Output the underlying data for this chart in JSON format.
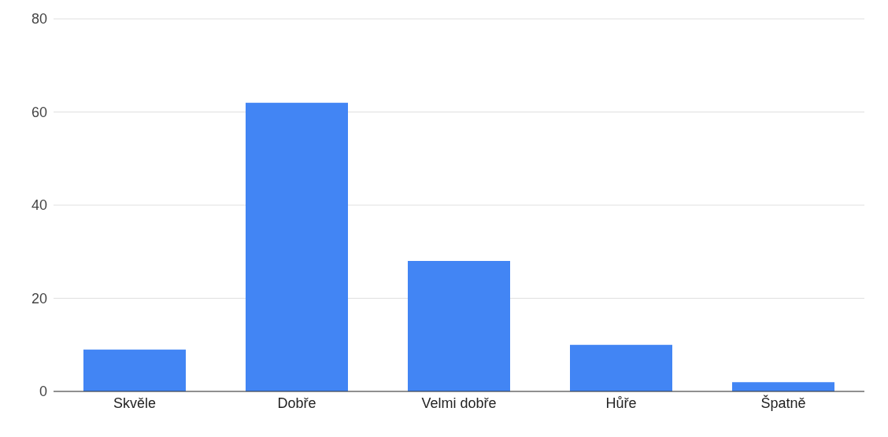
{
  "chart_data": {
    "type": "bar",
    "categories": [
      "Skvěle",
      "Dobře",
      "Velmi dobře",
      "Hůře",
      "Špatně"
    ],
    "values": [
      9,
      62,
      28,
      10,
      2
    ],
    "color": "#4285f4",
    "ylim": [
      0,
      80
    ],
    "yticks": [
      0,
      20,
      40,
      60,
      80
    ],
    "grid": "y"
  }
}
